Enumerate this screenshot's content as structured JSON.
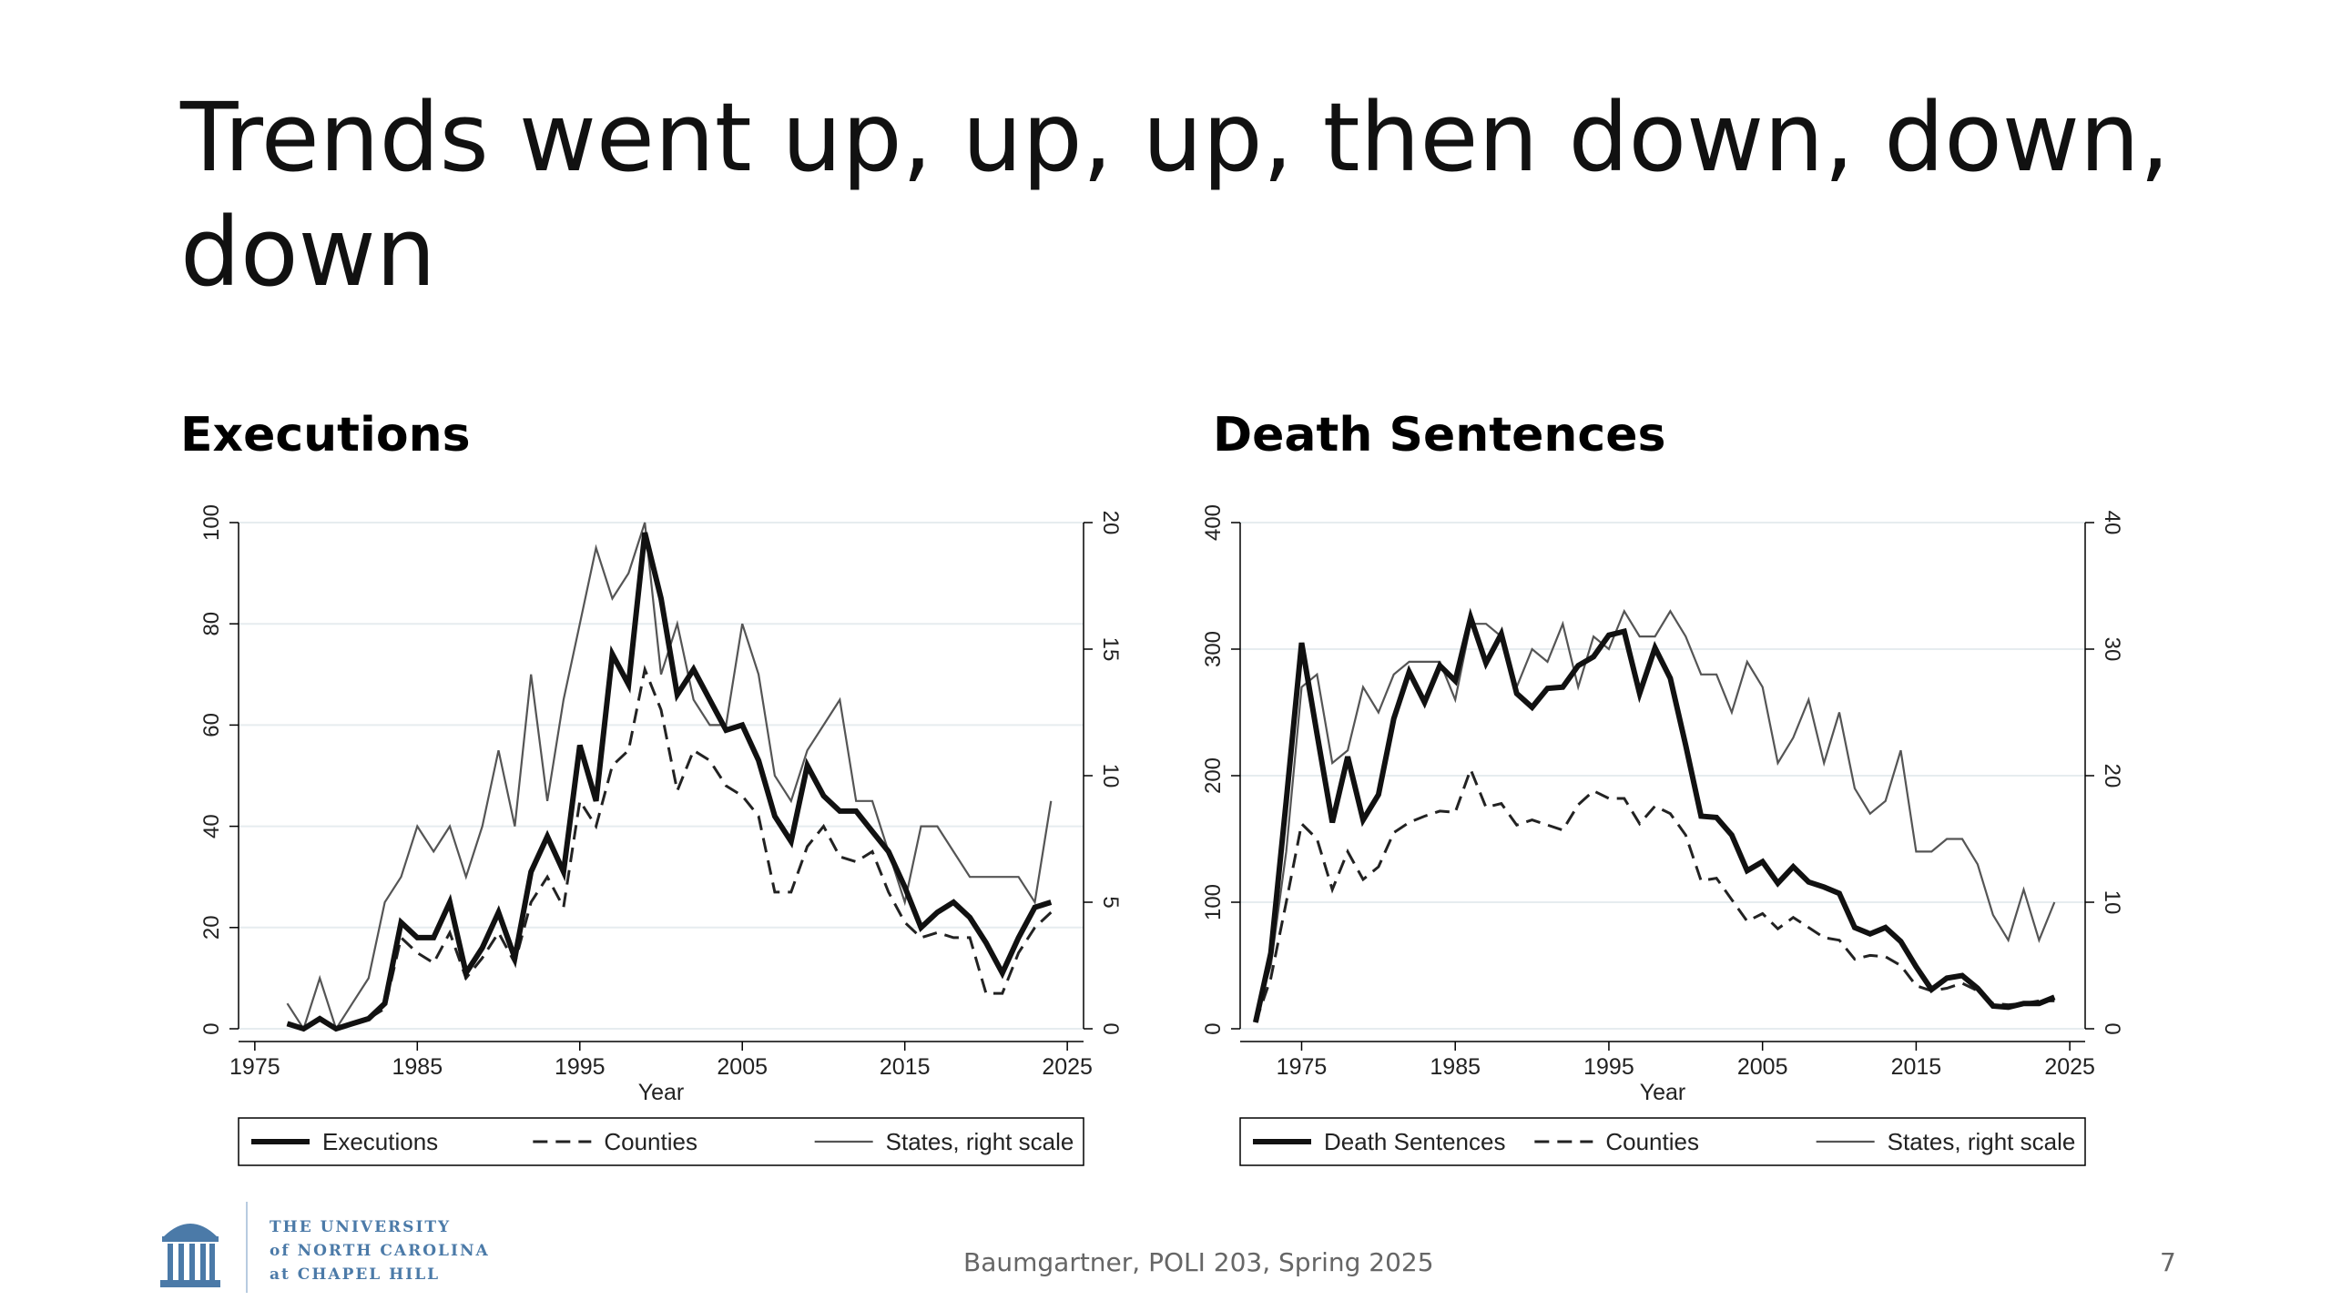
{
  "slide": {
    "title": "Trends went up, up, up, then down, down, down",
    "footer": "Baumgartner, POLI 203, Spring 2025",
    "page_number": "7",
    "logo": {
      "line1": "THE UNIVERSITY",
      "line2": "of NORTH CAROLINA",
      "line3": "at CHAPEL HILL",
      "color": "#4b7aa8"
    }
  },
  "chart_data": [
    {
      "type": "line",
      "title": "Executions",
      "xlabel": "Year",
      "xlim": [
        1974,
        2026
      ],
      "x_ticks": [
        1975,
        1985,
        1995,
        2005,
        2015,
        2025
      ],
      "ylim_left": [
        0,
        100
      ],
      "y_ticks_left": [
        0,
        20,
        40,
        60,
        80,
        100
      ],
      "ylim_right": [
        0,
        20
      ],
      "y_ticks_right": [
        0,
        5,
        10,
        15,
        20
      ],
      "grid": true,
      "legend_position": "bottom",
      "x": [
        1977,
        1978,
        1979,
        1980,
        1981,
        1982,
        1983,
        1984,
        1985,
        1986,
        1987,
        1988,
        1989,
        1990,
        1991,
        1992,
        1993,
        1994,
        1995,
        1996,
        1997,
        1998,
        1999,
        2000,
        2001,
        2002,
        2003,
        2004,
        2005,
        2006,
        2007,
        2008,
        2009,
        2010,
        2011,
        2012,
        2013,
        2014,
        2015,
        2016,
        2017,
        2018,
        2019,
        2020,
        2021,
        2022,
        2023,
        2024
      ],
      "series": [
        {
          "name": "Executions",
          "axis": "left",
          "style": "thick",
          "values": [
            1,
            0,
            2,
            0,
            1,
            2,
            5,
            21,
            18,
            18,
            25,
            11,
            16,
            23,
            14,
            31,
            38,
            31,
            56,
            45,
            74,
            68,
            98,
            85,
            66,
            71,
            65,
            59,
            60,
            53,
            42,
            37,
            52,
            46,
            43,
            43,
            39,
            35,
            28,
            20,
            23,
            25,
            22,
            17,
            11,
            18,
            24,
            25
          ]
        },
        {
          "name": "Counties",
          "axis": "left",
          "style": "dashed",
          "values": [
            1,
            0,
            2,
            0,
            1,
            2,
            4,
            18,
            15,
            13,
            19,
            10,
            14,
            19,
            13,
            25,
            30,
            24,
            45,
            40,
            52,
            55,
            71,
            63,
            47,
            55,
            53,
            48,
            46,
            42,
            27,
            27,
            36,
            40,
            34,
            33,
            35,
            27,
            21,
            18,
            19,
            18,
            18,
            7,
            7,
            15,
            20,
            23
          ]
        },
        {
          "name": "States, right scale",
          "axis": "right",
          "style": "thin",
          "values": [
            1,
            0,
            2,
            0,
            1,
            2,
            5,
            6,
            8,
            7,
            8,
            6,
            8,
            11,
            8,
            14,
            9,
            13,
            16,
            19,
            17,
            18,
            20,
            14,
            16,
            13,
            12,
            12,
            16,
            14,
            10,
            9,
            11,
            12,
            13,
            9,
            9,
            7,
            5,
            8,
            8,
            7,
            6,
            6,
            6,
            6,
            5,
            9
          ]
        }
      ]
    },
    {
      "type": "line",
      "title": "Death Sentences",
      "xlabel": "Year",
      "xlim": [
        1971,
        2026
      ],
      "x_ticks": [
        1975,
        1985,
        1995,
        2005,
        2015,
        2025
      ],
      "ylim_left": [
        0,
        400
      ],
      "y_ticks_left": [
        0,
        100,
        200,
        300,
        400
      ],
      "ylim_right": [
        0,
        40
      ],
      "y_ticks_right": [
        0,
        10,
        20,
        30,
        40
      ],
      "grid": true,
      "legend_position": "bottom",
      "x": [
        1972,
        1973,
        1974,
        1975,
        1976,
        1977,
        1978,
        1979,
        1980,
        1981,
        1982,
        1983,
        1984,
        1985,
        1986,
        1987,
        1988,
        1989,
        1990,
        1991,
        1992,
        1993,
        1994,
        1995,
        1996,
        1997,
        1998,
        1999,
        2000,
        2001,
        2002,
        2003,
        2004,
        2005,
        2006,
        2007,
        2008,
        2009,
        2010,
        2011,
        2012,
        2013,
        2014,
        2015,
        2016,
        2017,
        2018,
        2019,
        2020,
        2021,
        2022,
        2023,
        2024
      ],
      "series": [
        {
          "name": "Death Sentences",
          "axis": "left",
          "style": "thick",
          "values": [
            5,
            60,
            180,
            305,
            233,
            163,
            215,
            165,
            185,
            245,
            282,
            258,
            287,
            275,
            325,
            289,
            312,
            265,
            254,
            269,
            270,
            287,
            294,
            311,
            314,
            265,
            301,
            277,
            224,
            168,
            167,
            153,
            125,
            132,
            115,
            128,
            116,
            112,
            107,
            80,
            75,
            80,
            69,
            49,
            31,
            40,
            42,
            32,
            18,
            17,
            20,
            20,
            25
          ]
        },
        {
          "name": "Counties",
          "axis": "left",
          "style": "dashed",
          "values": [
            5,
            40,
            100,
            162,
            150,
            110,
            140,
            118,
            128,
            155,
            163,
            168,
            172,
            171,
            205,
            175,
            178,
            161,
            165,
            161,
            157,
            177,
            188,
            182,
            182,
            162,
            176,
            170,
            153,
            117,
            119,
            102,
            85,
            91,
            79,
            88,
            80,
            72,
            70,
            55,
            58,
            57,
            50,
            34,
            30,
            32,
            36,
            30,
            20,
            19,
            20,
            22,
            22
          ]
        },
        {
          "name": "States, right scale",
          "axis": "right",
          "style": "thin",
          "values": [
            1,
            5,
            14,
            27,
            28,
            21,
            22,
            27,
            25,
            28,
            29,
            29,
            29,
            26,
            32,
            32,
            31,
            27,
            30,
            29,
            32,
            27,
            31,
            30,
            33,
            31,
            31,
            33,
            31,
            28,
            28,
            25,
            29,
            27,
            21,
            23,
            26,
            21,
            25,
            19,
            17,
            18,
            22,
            14,
            14,
            15,
            15,
            13,
            9,
            7,
            11,
            7,
            10
          ]
        }
      ]
    }
  ]
}
